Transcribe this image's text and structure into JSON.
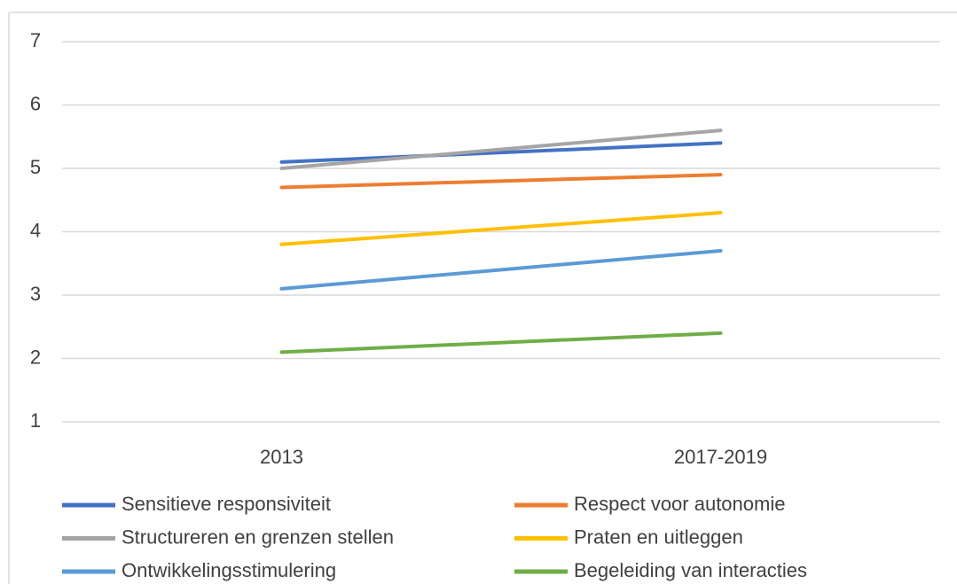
{
  "chart_data": {
    "type": "line",
    "categories": [
      "2013",
      "2017-2019"
    ],
    "series": [
      {
        "name": "Sensitieve responsiviteit",
        "color": "#4472c4",
        "values": [
          5.1,
          5.4
        ]
      },
      {
        "name": "Respect voor autonomie",
        "color": "#ed7d31",
        "values": [
          4.7,
          4.9
        ]
      },
      {
        "name": "Structureren en grenzen stellen",
        "color": "#a5a5a5",
        "values": [
          5.0,
          5.6
        ]
      },
      {
        "name": "Praten en uitleggen",
        "color": "#ffc000",
        "values": [
          3.8,
          4.3
        ]
      },
      {
        "name": "Ontwikkelingsstimulering",
        "color": "#5b9bd5",
        "values": [
          3.1,
          3.7
        ]
      },
      {
        "name": "Begeleiding van interacties",
        "color": "#70ad47",
        "values": [
          2.1,
          2.4
        ]
      }
    ],
    "ylim": [
      1,
      7
    ],
    "yticks": [
      1,
      2,
      3,
      4,
      5,
      6,
      7
    ],
    "grid": true,
    "legend": "bottom"
  }
}
